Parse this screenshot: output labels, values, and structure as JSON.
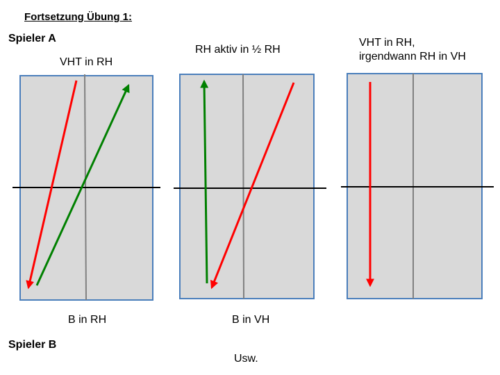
{
  "heading": "Fortsetzung Übung 1:",
  "players": {
    "a": "Spieler A",
    "b": "Spieler B"
  },
  "footer_note": "Usw.",
  "colors": {
    "field_fill": "#d9d9d9",
    "field_border": "#4a7ebb",
    "center_line": "#808080",
    "half_line": "#000000",
    "red_arrow": "#ff0000",
    "green_arrow": "#008000"
  },
  "diagrams": [
    {
      "top_label": [
        "VHT in RH"
      ],
      "bottom_label": "B in RH",
      "arrows": [
        {
          "color": "red_arrow",
          "direction": "down"
        },
        {
          "color": "green_arrow",
          "direction": "up"
        }
      ]
    },
    {
      "top_label": [
        "RH aktiv in ½ RH"
      ],
      "bottom_label": "B in VH",
      "arrows": [
        {
          "color": "green_arrow",
          "direction": "up"
        },
        {
          "color": "red_arrow",
          "direction": "down"
        }
      ]
    },
    {
      "top_label": [
        "VHT in RH,",
        "irgendwann RH in VH"
      ],
      "bottom_label": "",
      "arrows": [
        {
          "color": "red_arrow",
          "direction": "down"
        }
      ]
    }
  ]
}
